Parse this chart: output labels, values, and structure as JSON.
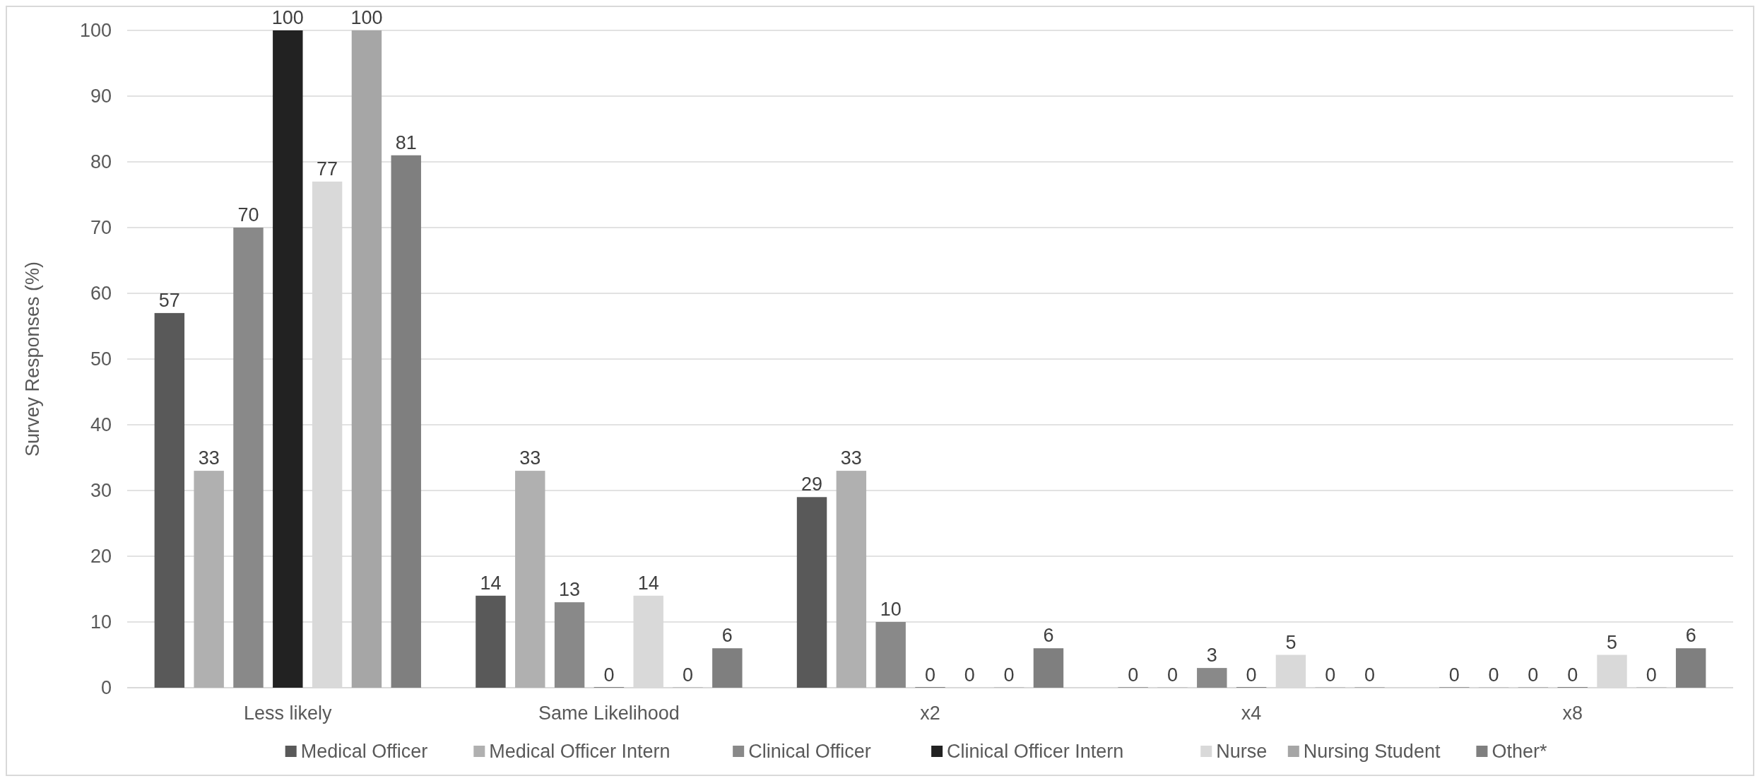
{
  "chart_data": {
    "type": "bar",
    "ylabel": "Survey Responses (%)",
    "categories": [
      "Less likely",
      "Same Likelihood",
      "x2",
      "x4",
      "x8"
    ],
    "series": [
      {
        "name": "Medical Officer",
        "color": "#595959",
        "values": [
          57,
          14,
          29,
          0,
          0
        ]
      },
      {
        "name": "Medical Officer Intern",
        "color": "#b0b0b0",
        "values": [
          33,
          33,
          33,
          0,
          0
        ]
      },
      {
        "name": "Clinical Officer",
        "color": "#898989",
        "values": [
          70,
          13,
          10,
          3,
          0
        ]
      },
      {
        "name": "Clinical Officer Intern",
        "color": "#222222",
        "values": [
          100,
          0,
          0,
          0,
          0
        ]
      },
      {
        "name": "Nurse",
        "color": "#d9d9d9",
        "values": [
          77,
          14,
          0,
          5,
          5
        ]
      },
      {
        "name": "Nursing Student",
        "color": "#a6a6a6",
        "values": [
          100,
          0,
          0,
          0,
          0
        ]
      },
      {
        "name": "Other*",
        "color": "#7f7f7f",
        "values": [
          81,
          6,
          6,
          0,
          6
        ]
      }
    ],
    "ylim": [
      0,
      100
    ],
    "yticks": [
      0,
      10,
      20,
      30,
      40,
      50,
      60,
      70,
      80,
      90,
      100
    ],
    "grid": "y",
    "legend": "bottom",
    "data_labels": true
  }
}
